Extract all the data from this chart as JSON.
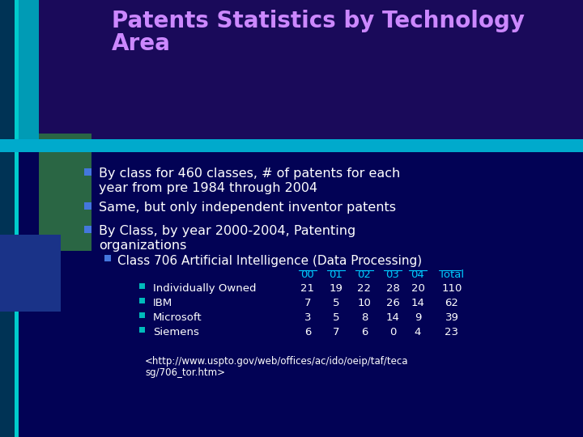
{
  "title_line1": "Patents Statistics by Technology",
  "title_line2": "Area",
  "bg_color": "#020255",
  "title_bg_color": "#1A0A5A",
  "title_color": "#CC88FF",
  "bullet1_line1": "By class for 460 classes, # of patents for each",
  "bullet1_line2": "year from pre 1984 through 2004",
  "bullet2": "Same, but only independent inventor patents",
  "bullet3_line1": "By Class, by year 2000-2004, Patenting",
  "bullet3_line2": "organizations",
  "sub_bullet": "Class 706 Artificial Intelligence (Data Processing)",
  "table_header": [
    "00",
    "01",
    "02",
    "03",
    "04",
    "Total"
  ],
  "table_rows": [
    {
      "label": "Individually Owned",
      "values": [
        "21",
        "19",
        "22",
        "28",
        "20",
        "110"
      ]
    },
    {
      "label": "IBM",
      "values": [
        "7",
        "5",
        "10",
        "26",
        "14",
        "62"
      ]
    },
    {
      "label": "Microsoft",
      "values": [
        "3",
        "5",
        "8",
        "14",
        "9",
        "39"
      ]
    },
    {
      "label": "Siemens",
      "values": [
        "6",
        "7",
        "6",
        "0",
        "4",
        "23"
      ]
    }
  ],
  "url_line1": "<http://www.uspto.gov/web/offices/ac/ido/oeip/taf/teca",
  "url_line2": "sg/706_tor.htm>",
  "text_color": "#FFFFFF",
  "header_color": "#00CCFF",
  "bullet_color": "#4477DD",
  "sub_bullet_color": "#4477DD",
  "row_bullet_color": "#00BBBB",
  "teal_bar_color": "#008899",
  "cyan_strip_color": "#00CCCC",
  "green_rect_color": "#2A6644",
  "title_bar_height": 175,
  "teal_h_bar_color": "#00AACC"
}
